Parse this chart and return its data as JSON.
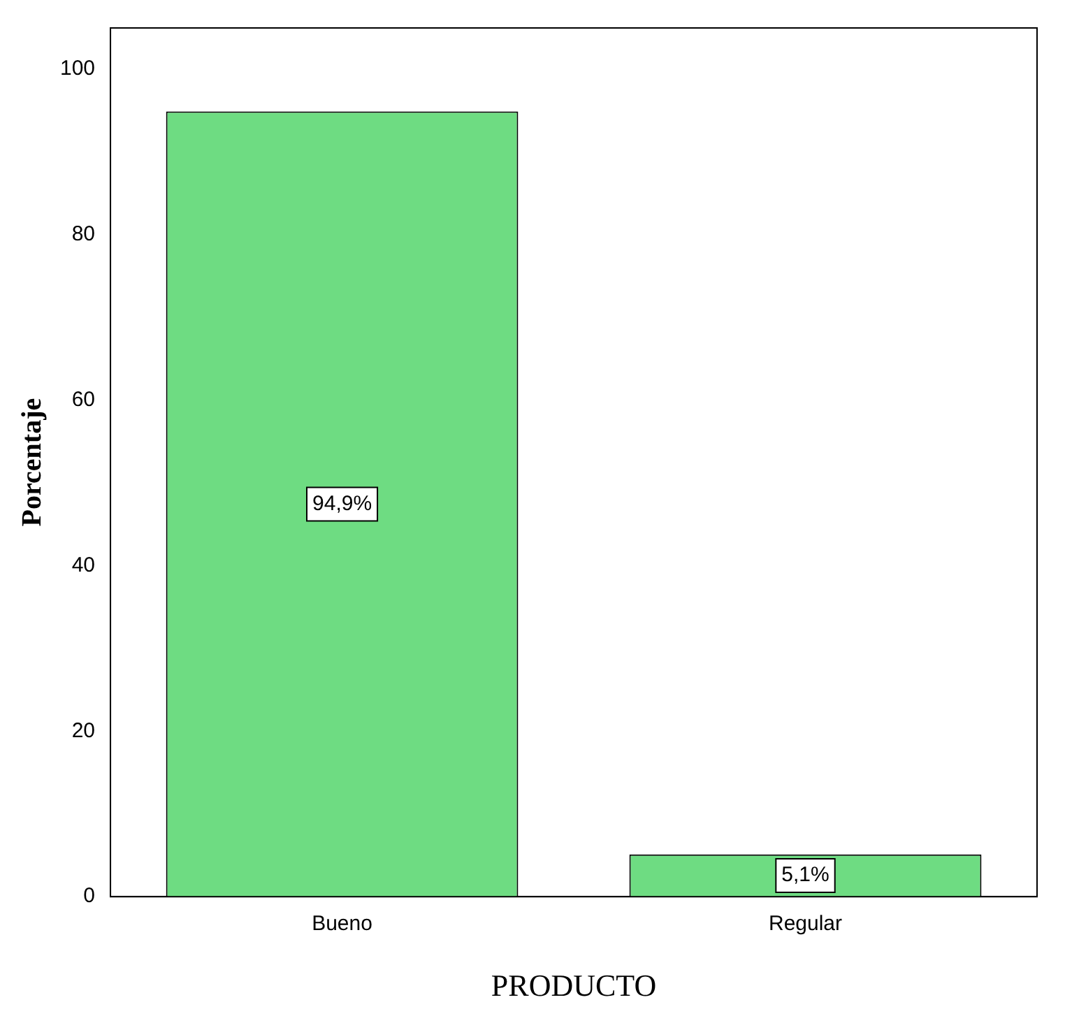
{
  "chart_data": {
    "type": "bar",
    "xlabel": "PRODUCTO",
    "ylabel": "Porcentaje",
    "categories": [
      "Bueno",
      "Regular"
    ],
    "values": [
      94.9,
      5.1
    ],
    "color": "#6edc82",
    "value_labels": [
      "94,9%",
      "5,1%"
    ],
    "ylim": [
      0,
      105
    ],
    "yticks": [
      0,
      20,
      40,
      60,
      80,
      100
    ],
    "grid": false,
    "legend": false
  }
}
